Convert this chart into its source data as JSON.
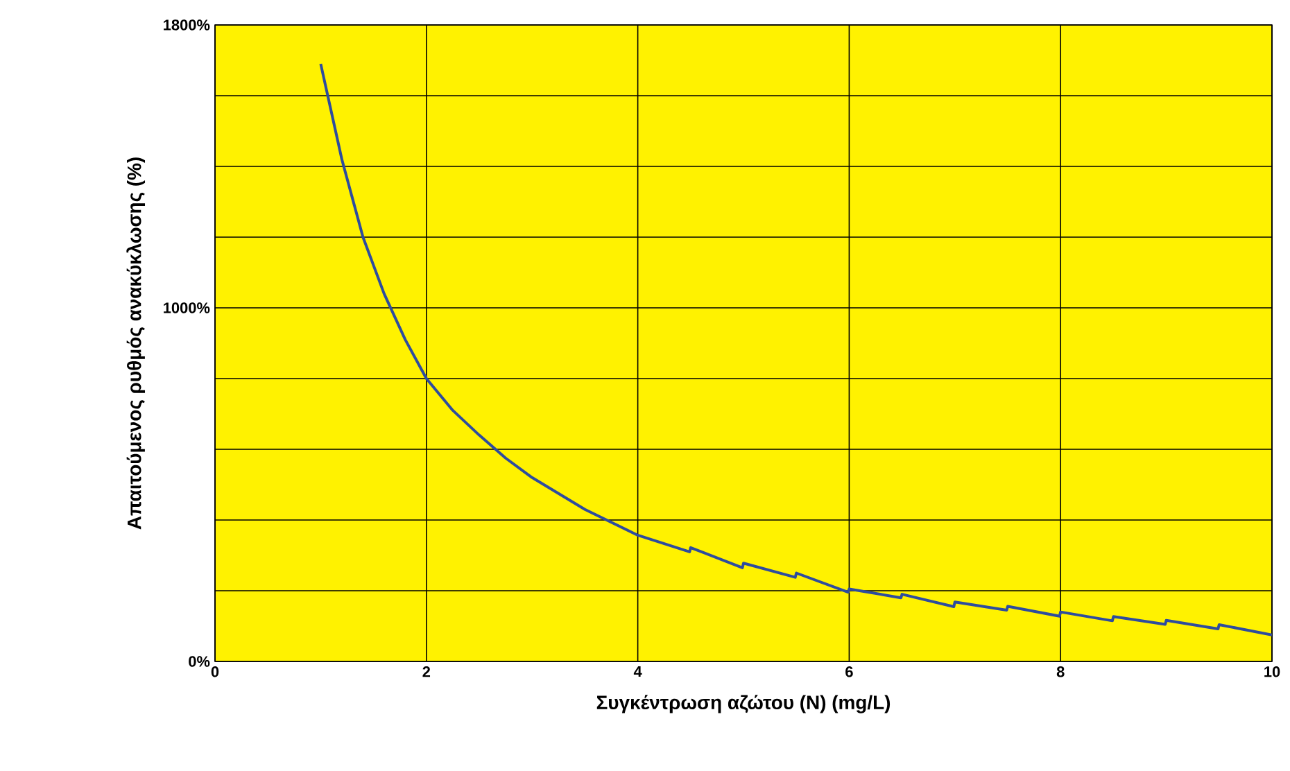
{
  "chart_data": {
    "type": "line",
    "xlabel": "Συγκέντρωση αζώτου (N) (mg/L)",
    "ylabel": "Απαιτούμενος ρυθμός ανακύκλωσης (%)",
    "xlim": [
      0,
      10
    ],
    "xticks": [
      0,
      2,
      4,
      6,
      8,
      10
    ],
    "ylim": [
      0,
      1800
    ],
    "yticks": [
      {
        "value": 0,
        "label": "0%"
      },
      {
        "value": 200,
        "label": null
      },
      {
        "value": 400,
        "label": null
      },
      {
        "value": 600,
        "label": null
      },
      {
        "value": 800,
        "label": null
      },
      {
        "value": 1000,
        "label": "1000%"
      },
      {
        "value": 1200,
        "label": null
      },
      {
        "value": 1400,
        "label": null
      },
      {
        "value": 1600,
        "label": null
      },
      {
        "value": 1800,
        "label": "1800%"
      }
    ],
    "grid": true,
    "marker": "none",
    "line_style": "solid",
    "series": [
      {
        "color": "#2e4c9e",
        "x": [
          1,
          1.2,
          1.4,
          1.6,
          1.8,
          2,
          2.25,
          2.5,
          2.75,
          3,
          3.5,
          4,
          4.49,
          4.5,
          4.99,
          5,
          5.49,
          5.5,
          5.99,
          6,
          6.49,
          6.5,
          6.99,
          7,
          7.49,
          7.5,
          7.99,
          8,
          8.49,
          8.5,
          8.99,
          9,
          9.49,
          9.5,
          10
        ],
        "values": [
          1690,
          1420,
          1200,
          1040,
          910,
          800,
          710,
          640,
          575,
          520,
          430,
          357,
          310,
          322,
          265,
          278,
          238,
          250,
          196,
          205,
          180,
          190,
          155,
          168,
          145,
          156,
          128,
          140,
          115,
          127,
          105,
          116,
          92,
          104,
          75
        ]
      }
    ]
  }
}
